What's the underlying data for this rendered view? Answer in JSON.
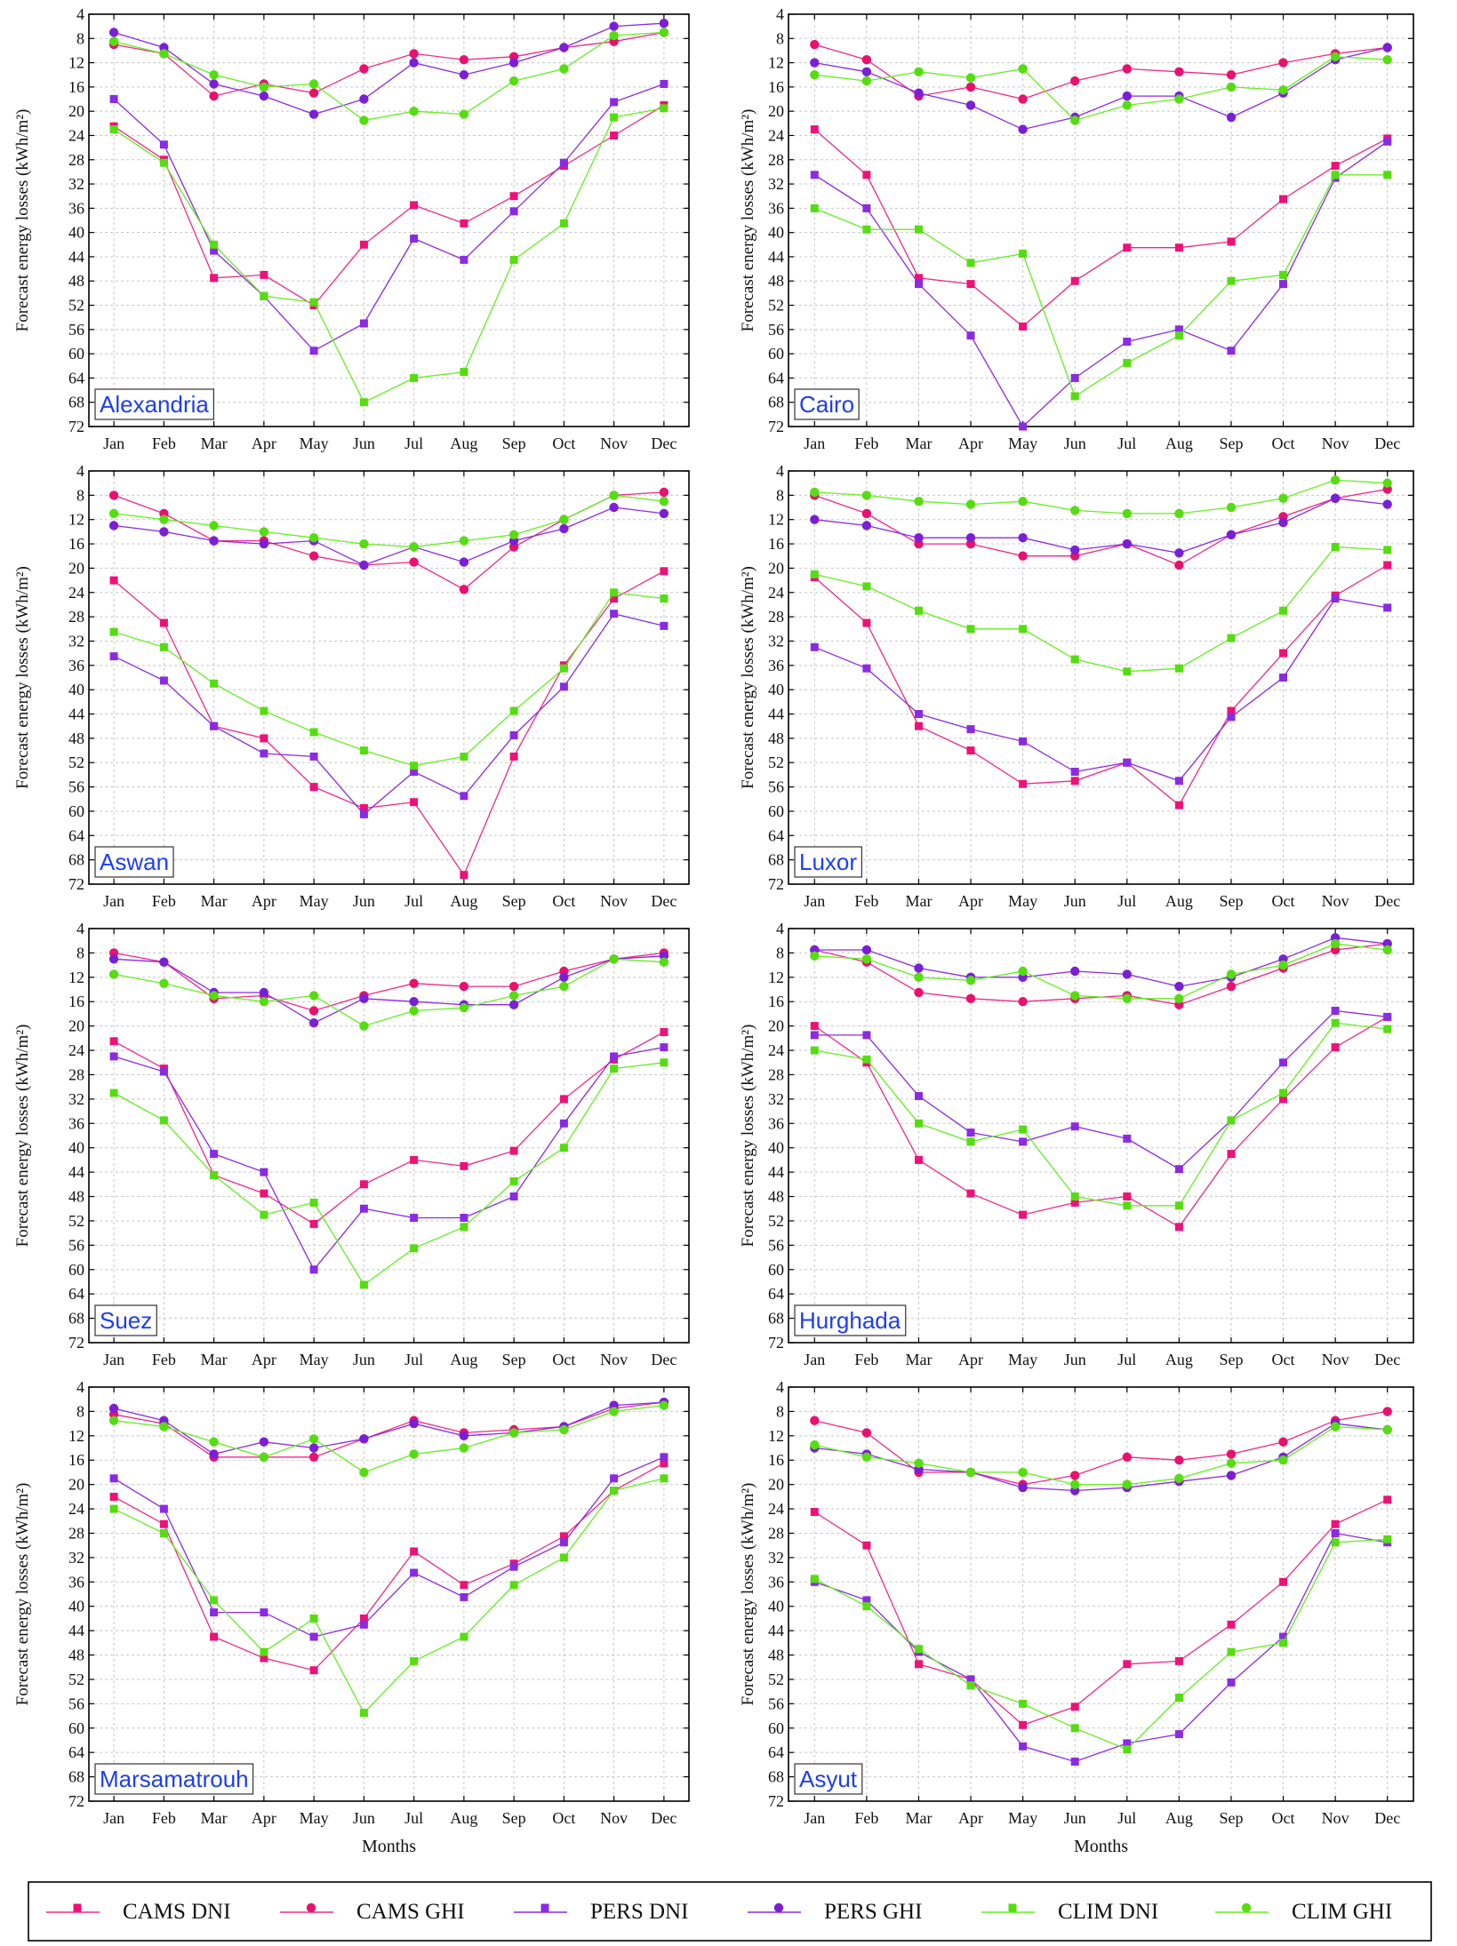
{
  "chart_data": {
    "type": "line",
    "months": [
      "Jan",
      "Feb",
      "Mar",
      "Apr",
      "May",
      "Jun",
      "Jul",
      "Aug",
      "Sep",
      "Oct",
      "Nov",
      "Dec"
    ],
    "ylabel": "Forecast energy losses (kWh/m²)",
    "xlabel": "Months",
    "ylim_inverted": [
      4,
      72
    ],
    "yticks": [
      4,
      8,
      12,
      16,
      20,
      24,
      28,
      32,
      36,
      40,
      44,
      48,
      52,
      56,
      60,
      64,
      68,
      72
    ],
    "colors": {
      "CAMS DNI": "#ee2a88",
      "CAMS GHI": "#ee2a88",
      "PERS DNI": "#8a2be2",
      "PERS GHI": "#8a2be2",
      "CLIM DNI": "#66ee22",
      "CLIM GHI": "#66ee22"
    },
    "marker_colors": {
      "CAMS DNI": "#ee1177",
      "CAMS GHI": "#e8116e",
      "PERS DNI": "#8a2be2",
      "PERS GHI": "#7a1fd6",
      "CLIM DNI": "#55dd11",
      "CLIM GHI": "#55dd11"
    },
    "legend": [
      {
        "name": "CAMS DNI",
        "marker": "square"
      },
      {
        "name": "CAMS GHI",
        "marker": "circle"
      },
      {
        "name": "PERS DNI",
        "marker": "square"
      },
      {
        "name": "PERS GHI",
        "marker": "circle"
      },
      {
        "name": "CLIM DNI",
        "marker": "square"
      },
      {
        "name": "CLIM GHI",
        "marker": "circle"
      }
    ],
    "panels": [
      {
        "city": "Alexandria",
        "series": {
          "CAMS DNI": [
            22.5,
            28,
            47.5,
            47,
            52,
            42,
            35.5,
            38.5,
            34,
            29,
            24,
            19
          ],
          "CAMS GHI": [
            9,
            10.5,
            17.5,
            15.5,
            17,
            13,
            10.5,
            11.5,
            11,
            9.5,
            8.5,
            7
          ],
          "PERS DNI": [
            18,
            25.5,
            43,
            50.5,
            59.5,
            55,
            41,
            44.5,
            36.5,
            28.5,
            18.5,
            15.5
          ],
          "PERS GHI": [
            7,
            9.5,
            15.5,
            17.5,
            20.5,
            18,
            12,
            14,
            12,
            9.5,
            6,
            5.5
          ],
          "CLIM DNI": [
            23,
            28.5,
            42,
            50.5,
            51.5,
            68,
            64,
            63,
            44.5,
            38.5,
            21,
            19.5
          ],
          "CLIM GHI": [
            8.5,
            10.5,
            14,
            16,
            15.5,
            21.5,
            20,
            20.5,
            15,
            13,
            7.5,
            7
          ]
        }
      },
      {
        "city": "Cairo",
        "series": {
          "CAMS DNI": [
            23,
            30.5,
            47.5,
            48.5,
            55.5,
            48,
            42.5,
            42.5,
            41.5,
            34.5,
            29,
            24.5
          ],
          "CAMS GHI": [
            9,
            11.5,
            17.5,
            16,
            18,
            15,
            13,
            13.5,
            14,
            12,
            10.5,
            9.5
          ],
          "PERS DNI": [
            30.5,
            36,
            48.5,
            57,
            72,
            64,
            58,
            56,
            59.5,
            48.5,
            31,
            25
          ],
          "PERS GHI": [
            12,
            13.5,
            17,
            19,
            23,
            21,
            17.5,
            17.5,
            21,
            17,
            11.5,
            9.5
          ],
          "CLIM DNI": [
            36,
            39.5,
            39.5,
            45,
            43.5,
            67,
            61.5,
            57,
            48,
            47,
            30.5,
            30.5
          ],
          "CLIM GHI": [
            14,
            15,
            13.5,
            14.5,
            13,
            21.5,
            19,
            18,
            16,
            16.5,
            11,
            11.5
          ]
        }
      },
      {
        "city": "Aswan",
        "series": {
          "CAMS DNI": [
            22,
            29,
            46,
            48,
            56,
            59.5,
            58.5,
            70.5,
            51,
            36,
            25,
            20.5
          ],
          "CAMS GHI": [
            8,
            11,
            15.5,
            15.5,
            18,
            19.5,
            19,
            23.5,
            16.5,
            12,
            8,
            7.5
          ],
          "PERS DNI": [
            34.5,
            38.5,
            46,
            50.5,
            51,
            60.5,
            53.5,
            57.5,
            47.5,
            39.5,
            27.5,
            29.5
          ],
          "PERS GHI": [
            13,
            14,
            15.5,
            16,
            15.5,
            19.5,
            16.5,
            19,
            15.5,
            13.5,
            10,
            11
          ],
          "CLIM DNI": [
            30.5,
            33,
            39,
            43.5,
            47,
            50,
            52.5,
            51,
            43.5,
            36.5,
            24,
            25
          ],
          "CLIM GHI": [
            11,
            12,
            13,
            14,
            15,
            16,
            16.5,
            15.5,
            14.5,
            12,
            8,
            9
          ]
        }
      },
      {
        "city": "Luxor",
        "series": {
          "CAMS DNI": [
            21.5,
            29,
            46,
            50,
            55.5,
            55,
            52,
            59,
            43.5,
            34,
            24.5,
            19.5
          ],
          "CAMS GHI": [
            8,
            11,
            16,
            16,
            18,
            18,
            16,
            19.5,
            14.5,
            11.5,
            8.5,
            7
          ],
          "PERS DNI": [
            33,
            36.5,
            44,
            46.5,
            48.5,
            53.5,
            52,
            55,
            44.5,
            38,
            25,
            26.5
          ],
          "PERS GHI": [
            12,
            13,
            15,
            15,
            15,
            17,
            16,
            17.5,
            14.5,
            12.5,
            8.5,
            9.5
          ],
          "CLIM DNI": [
            21,
            23,
            27,
            30,
            30,
            35,
            37,
            36.5,
            31.5,
            27,
            16.5,
            17
          ],
          "CLIM GHI": [
            7.5,
            8,
            9,
            9.5,
            9,
            10.5,
            11,
            11,
            10,
            8.5,
            5.5,
            6
          ]
        }
      },
      {
        "city": "Suez",
        "series": {
          "CAMS DNI": [
            22.5,
            27,
            44.5,
            47.5,
            52.5,
            46,
            42,
            43,
            40.5,
            32,
            25.5,
            21
          ],
          "CAMS GHI": [
            8,
            9.5,
            15.5,
            15,
            17.5,
            15,
            13,
            13.5,
            13.5,
            11,
            9,
            8
          ],
          "PERS DNI": [
            25,
            27.5,
            41,
            44,
            60,
            50,
            51.5,
            51.5,
            48,
            36,
            25,
            23.5
          ],
          "PERS GHI": [
            9,
            9.5,
            14.5,
            14.5,
            19.5,
            15.5,
            16,
            16.5,
            16.5,
            12,
            9,
            8.5
          ],
          "CLIM DNI": [
            31,
            35.5,
            44.5,
            51,
            49,
            62.5,
            56.5,
            53,
            45.5,
            40,
            27,
            26
          ],
          "CLIM GHI": [
            11.5,
            13,
            15,
            16,
            15,
            20,
            17.5,
            17,
            15,
            13.5,
            9,
            9.5
          ]
        }
      },
      {
        "city": "Hurghada",
        "series": {
          "CAMS DNI": [
            20,
            26,
            42,
            47.5,
            51,
            49,
            48,
            53,
            41,
            32,
            23.5,
            18.5
          ],
          "CAMS GHI": [
            7.5,
            9.5,
            14.5,
            15.5,
            16,
            15.5,
            15,
            16.5,
            13.5,
            10.5,
            7.5,
            6.5
          ],
          "PERS DNI": [
            21.5,
            21.5,
            31.5,
            37.5,
            39,
            36.5,
            38.5,
            43.5,
            35.5,
            26,
            17.5,
            18.5
          ],
          "PERS GHI": [
            7.5,
            7.5,
            10.5,
            12,
            12,
            11,
            11.5,
            13.5,
            12,
            9,
            5.5,
            6.5
          ],
          "CLIM DNI": [
            24,
            25.5,
            36,
            39,
            37,
            48,
            49.5,
            49.5,
            35.5,
            31,
            19.5,
            20.5
          ],
          "CLIM GHI": [
            8.5,
            9,
            12,
            12.5,
            11,
            15,
            15.5,
            15.5,
            11.5,
            10,
            6.5,
            7.5
          ]
        }
      },
      {
        "city": "Marsamatrouh",
        "series": {
          "CAMS DNI": [
            22,
            26.5,
            45,
            48.5,
            50.5,
            42,
            31,
            36.5,
            33,
            28.5,
            21,
            16.5
          ],
          "CAMS GHI": [
            8.5,
            10,
            15.5,
            15.5,
            15.5,
            12.5,
            9.5,
            11.5,
            11,
            10.5,
            7.5,
            6.5
          ],
          "PERS DNI": [
            19,
            24,
            41,
            41,
            45,
            43,
            34.5,
            38.5,
            33.5,
            29.5,
            19,
            15.5
          ],
          "PERS GHI": [
            7.5,
            9.5,
            15,
            13,
            14,
            12.5,
            10,
            12,
            11.5,
            10.5,
            7,
            6.5
          ],
          "CLIM DNI": [
            24,
            28,
            39,
            47.5,
            42,
            57.5,
            49,
            45,
            36.5,
            32,
            21,
            19
          ],
          "CLIM GHI": [
            9.5,
            10.5,
            13,
            15.5,
            12.5,
            18,
            15,
            14,
            11.5,
            11,
            8,
            7
          ]
        }
      },
      {
        "city": "Asyut",
        "series": {
          "CAMS DNI": [
            24.5,
            30,
            49.5,
            52,
            59.5,
            56.5,
            49.5,
            49,
            43,
            36,
            26.5,
            22.5
          ],
          "CAMS GHI": [
            9.5,
            11.5,
            18,
            18,
            20,
            18.5,
            15.5,
            16,
            15,
            13,
            9.5,
            8
          ],
          "PERS DNI": [
            36,
            39,
            47.5,
            52,
            63,
            65.5,
            62.5,
            61,
            52.5,
            45,
            28,
            29.5
          ],
          "PERS GHI": [
            14,
            15,
            17.5,
            18,
            20.5,
            21,
            20.5,
            19.5,
            18.5,
            15.5,
            10,
            11
          ],
          "CLIM DNI": [
            35.5,
            40,
            47,
            53,
            56,
            60,
            63.5,
            55,
            47.5,
            46,
            29.5,
            29
          ],
          "CLIM GHI": [
            13.5,
            15.5,
            16.5,
            18,
            18,
            20,
            20,
            19,
            16.5,
            16,
            10.5,
            11
          ]
        }
      }
    ]
  }
}
